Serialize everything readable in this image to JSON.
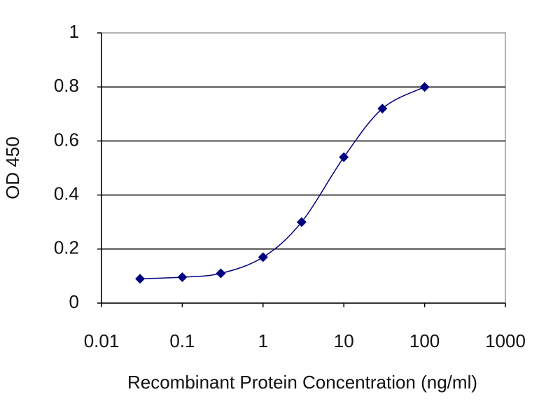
{
  "chart_data": {
    "type": "line",
    "x_label": "Recombinant Protein Concentration (ng/ml)",
    "y_label": "OD 450",
    "x": [
      0.03,
      0.1,
      0.3,
      1,
      3,
      10,
      30,
      100
    ],
    "series": [
      {
        "color": "#000080",
        "values": [
          0.09,
          0.096,
          0.11,
          0.17,
          0.3,
          0.54,
          0.72,
          0.8
        ]
      }
    ],
    "xscale": "log",
    "xlim": [
      0.01,
      1000
    ],
    "xticks": [
      0.01,
      0.1,
      1,
      10,
      100,
      1000
    ],
    "ylim": [
      0,
      1
    ],
    "yticks": [
      0,
      0.2,
      0.4,
      0.6,
      0.8,
      1
    ],
    "grid": true,
    "smooth": true
  }
}
